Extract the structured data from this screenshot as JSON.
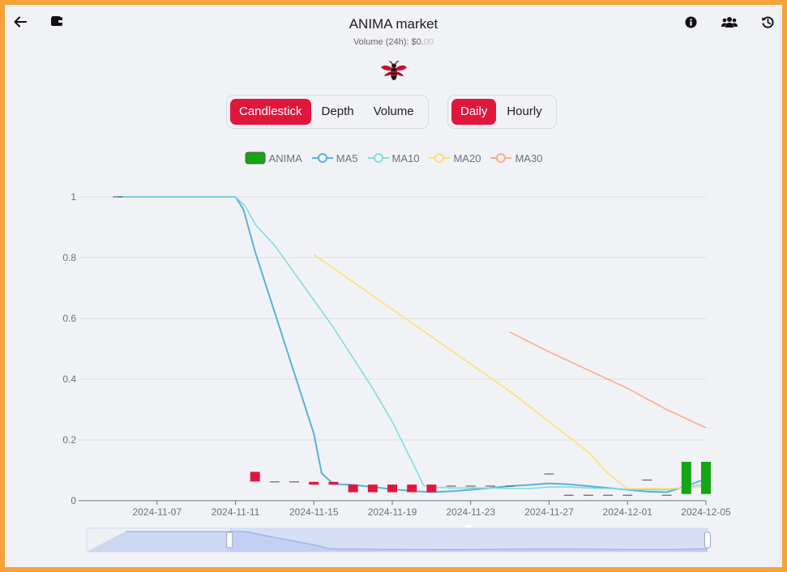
{
  "header": {
    "title": "ANIMA market",
    "volume_label": "Volume (24h): $0.",
    "volume_dim": "00",
    "icons": {
      "back": "arrow-left-icon",
      "wallet": "wallet-icon",
      "info": "info-circle-icon",
      "community": "users-icon",
      "history": "history-icon"
    },
    "logo": "bee-logo"
  },
  "tabs": {
    "chart_type": [
      {
        "label": "Candlestick",
        "active": true
      },
      {
        "label": "Depth",
        "active": false
      },
      {
        "label": "Volume",
        "active": false
      }
    ],
    "interval": [
      {
        "label": "Daily",
        "active": true
      },
      {
        "label": "Hourly",
        "active": false
      }
    ]
  },
  "chart_data": {
    "type": "candlestick",
    "x_ticks": [
      "2024-11-07",
      "2024-11-11",
      "2024-11-15",
      "2024-11-19",
      "2024-11-23",
      "2024-11-27",
      "2024-12-01",
      "2024-12-05"
    ],
    "y_ticks": [
      "0",
      "0.2",
      "0.4",
      "0.6",
      "0.8",
      "1"
    ],
    "ylim": [
      0,
      1
    ],
    "grid": true,
    "legend_position": "top-center",
    "legend": [
      {
        "name": "ANIMA",
        "color": "#14a614",
        "kind": "box"
      },
      {
        "name": "MA5",
        "color": "#5aafdc",
        "kind": "line"
      },
      {
        "name": "MA10",
        "color": "#7fdce0",
        "kind": "line"
      },
      {
        "name": "MA20",
        "color": "#fbdf75",
        "kind": "line"
      },
      {
        "name": "MA30",
        "color": "#f9ad8e",
        "kind": "line"
      }
    ],
    "colors": {
      "up": "#14a614",
      "down": "#e0173d",
      "flat": "#666666"
    },
    "candles": [
      {
        "date": "2024-11-05",
        "open": 1.0,
        "close": 1.0,
        "low": 1.0,
        "high": 1.0
      },
      {
        "date": "2024-11-12",
        "open": 0.095,
        "close": 0.063,
        "low": 0.063,
        "high": 0.095
      },
      {
        "date": "2024-11-13",
        "open": 0.062,
        "close": 0.062,
        "low": 0.062,
        "high": 0.062
      },
      {
        "date": "2024-11-14",
        "open": 0.062,
        "close": 0.062,
        "low": 0.062,
        "high": 0.062
      },
      {
        "date": "2024-11-15",
        "open": 0.062,
        "close": 0.053,
        "low": 0.053,
        "high": 0.062
      },
      {
        "date": "2024-11-16",
        "open": 0.062,
        "close": 0.053,
        "low": 0.053,
        "high": 0.062
      },
      {
        "date": "2024-11-17",
        "open": 0.053,
        "close": 0.028,
        "low": 0.028,
        "high": 0.053
      },
      {
        "date": "2024-11-18",
        "open": 0.053,
        "close": 0.028,
        "low": 0.028,
        "high": 0.053
      },
      {
        "date": "2024-11-19",
        "open": 0.053,
        "close": 0.028,
        "low": 0.028,
        "high": 0.053
      },
      {
        "date": "2024-11-20",
        "open": 0.053,
        "close": 0.028,
        "low": 0.028,
        "high": 0.053
      },
      {
        "date": "2024-11-21",
        "open": 0.053,
        "close": 0.028,
        "low": 0.028,
        "high": 0.053
      },
      {
        "date": "2024-11-22",
        "open": 0.048,
        "close": 0.048,
        "low": 0.048,
        "high": 0.048
      },
      {
        "date": "2024-11-23",
        "open": 0.048,
        "close": 0.048,
        "low": 0.048,
        "high": 0.048
      },
      {
        "date": "2024-11-24",
        "open": 0.048,
        "close": 0.048,
        "low": 0.048,
        "high": 0.048
      },
      {
        "date": "2024-11-25",
        "open": 0.048,
        "close": 0.048,
        "low": 0.048,
        "high": 0.048
      },
      {
        "date": "2024-11-27",
        "open": 0.088,
        "close": 0.088,
        "low": 0.088,
        "high": 0.088
      },
      {
        "date": "2024-11-28",
        "open": 0.018,
        "close": 0.018,
        "low": 0.018,
        "high": 0.018
      },
      {
        "date": "2024-11-29",
        "open": 0.018,
        "close": 0.018,
        "low": 0.018,
        "high": 0.018
      },
      {
        "date": "2024-11-30",
        "open": 0.018,
        "close": 0.018,
        "low": 0.018,
        "high": 0.018
      },
      {
        "date": "2024-12-01",
        "open": 0.018,
        "close": 0.018,
        "low": 0.018,
        "high": 0.018
      },
      {
        "date": "2024-12-02",
        "open": 0.068,
        "close": 0.068,
        "low": 0.068,
        "high": 0.068
      },
      {
        "date": "2024-12-03",
        "open": 0.018,
        "close": 0.018,
        "low": 0.018,
        "high": 0.018
      },
      {
        "date": "2024-12-04",
        "open": 0.022,
        "close": 0.128,
        "low": 0.022,
        "high": 0.128
      },
      {
        "date": "2024-12-05",
        "open": 0.022,
        "close": 0.128,
        "low": 0.022,
        "high": 0.128
      }
    ],
    "ma": {
      "MA5": [
        [
          "2024-11-05",
          1.0
        ],
        [
          "2024-11-10",
          1.0
        ],
        [
          "2024-11-11",
          1.0
        ],
        [
          "2024-11-11.4",
          0.96
        ],
        [
          "2024-11-12",
          0.82
        ],
        [
          "2024-11-13",
          0.62
        ],
        [
          "2024-11-14",
          0.42
        ],
        [
          "2024-11-15",
          0.22
        ],
        [
          "2024-11-15.4",
          0.09
        ],
        [
          "2024-11-16",
          0.055
        ],
        [
          "2024-11-17",
          0.052
        ],
        [
          "2024-11-18",
          0.045
        ],
        [
          "2024-11-19",
          0.038
        ],
        [
          "2024-11-20",
          0.032
        ],
        [
          "2024-11-21",
          0.028
        ],
        [
          "2024-11-22",
          0.031
        ],
        [
          "2024-11-23",
          0.036
        ],
        [
          "2024-11-24",
          0.042
        ],
        [
          "2024-11-25",
          0.048
        ],
        [
          "2024-11-26",
          0.052
        ],
        [
          "2024-11-27",
          0.057
        ],
        [
          "2024-11-28",
          0.054
        ],
        [
          "2024-11-29",
          0.048
        ],
        [
          "2024-11-30",
          0.042
        ],
        [
          "2024-12-01",
          0.036
        ],
        [
          "2024-12-02",
          0.03
        ],
        [
          "2024-12-03",
          0.028
        ],
        [
          "2024-12-04",
          0.048
        ],
        [
          "2024-12-05",
          0.072
        ]
      ],
      "MA10": [
        [
          "2024-11-05",
          1.0
        ],
        [
          "2024-11-11",
          1.0
        ],
        [
          "2024-11-11.5",
          0.97
        ],
        [
          "2024-11-12",
          0.91
        ],
        [
          "2024-11-13",
          0.84
        ],
        [
          "2024-11-14",
          0.75
        ],
        [
          "2024-11-15",
          0.66
        ],
        [
          "2024-11-16",
          0.57
        ],
        [
          "2024-11-17",
          0.47
        ],
        [
          "2024-11-18",
          0.37
        ],
        [
          "2024-11-19",
          0.26
        ],
        [
          "2024-11-20",
          0.13
        ],
        [
          "2024-11-20.6",
          0.05
        ],
        [
          "2024-11-21",
          0.045
        ],
        [
          "2024-11-22",
          0.042
        ],
        [
          "2024-11-23",
          0.042
        ],
        [
          "2024-11-24",
          0.042
        ],
        [
          "2024-11-25",
          0.04
        ],
        [
          "2024-11-26",
          0.04
        ],
        [
          "2024-11-27",
          0.045
        ],
        [
          "2024-11-28",
          0.045
        ],
        [
          "2024-11-29",
          0.042
        ],
        [
          "2024-11-30",
          0.04
        ],
        [
          "2024-12-01",
          0.038
        ],
        [
          "2024-12-02",
          0.036
        ],
        [
          "2024-12-03",
          0.036
        ],
        [
          "2024-12-04",
          0.044
        ],
        [
          "2024-12-05",
          0.055
        ]
      ],
      "MA20": [
        [
          "2024-11-15",
          0.81
        ],
        [
          "2024-11-17",
          0.72
        ],
        [
          "2024-11-19",
          0.63
        ],
        [
          "2024-11-21",
          0.54
        ],
        [
          "2024-11-23",
          0.45
        ],
        [
          "2024-11-25",
          0.36
        ],
        [
          "2024-11-27",
          0.26
        ],
        [
          "2024-11-29",
          0.16
        ],
        [
          "2024-11-30",
          0.09
        ],
        [
          "2024-12-01",
          0.04
        ],
        [
          "2024-12-02",
          0.04
        ],
        [
          "2024-12-03",
          0.04
        ],
        [
          "2024-12-04",
          0.042
        ],
        [
          "2024-12-05",
          0.048
        ]
      ],
      "MA30": [
        [
          "2024-11-25",
          0.555
        ],
        [
          "2024-11-27",
          0.49
        ],
        [
          "2024-11-29",
          0.43
        ],
        [
          "2024-12-01",
          0.37
        ],
        [
          "2024-12-03",
          0.3
        ],
        [
          "2024-12-05",
          0.24
        ]
      ]
    },
    "zoom_window": {
      "start": 0.23,
      "end": 1.0
    }
  }
}
